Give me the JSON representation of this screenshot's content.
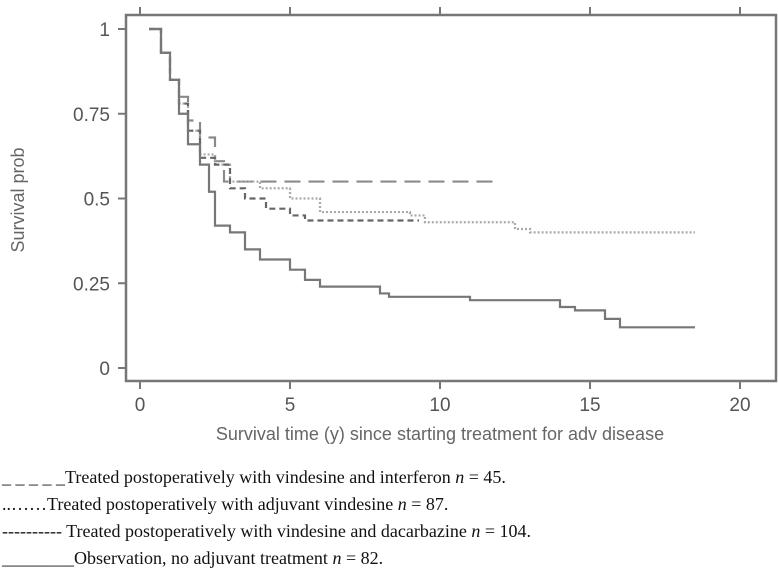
{
  "chart_data": {
    "type": "line",
    "title": "",
    "xlabel": "Survival time (y) since starting treatment for adv disease",
    "ylabel": "Survival prob",
    "xlim": [
      0,
      20
    ],
    "ylim": [
      0,
      1
    ],
    "xticks": [
      "0",
      "5",
      "10",
      "15",
      "20"
    ],
    "yticks": [
      "0",
      "0.25",
      "0.5",
      "0.75",
      "1"
    ],
    "grid": false,
    "step": true,
    "series": [
      {
        "name": "Treated postoperatively with vindesine and interferon",
        "style": "long-dash",
        "color": "#8a8a8a",
        "x": [
          0.3,
          0.7,
          1.0,
          1.3,
          1.6,
          2.0,
          2.5,
          2.8,
          12.0
        ],
        "y": [
          1,
          0.93,
          0.85,
          0.8,
          0.73,
          0.68,
          0.61,
          0.55,
          0.55
        ]
      },
      {
        "name": "Treated postoperatively with adjuvant vindesine",
        "style": "dotted",
        "color": "#a8a8a8",
        "x": [
          0.3,
          0.7,
          1.0,
          1.3,
          1.6,
          2.0,
          2.5,
          3.0,
          4.0,
          5.0,
          6.0,
          9.0,
          9.5,
          11.0,
          12.5,
          13.0,
          18.5
        ],
        "y": [
          1,
          0.93,
          0.85,
          0.78,
          0.7,
          0.63,
          0.6,
          0.55,
          0.53,
          0.5,
          0.46,
          0.45,
          0.43,
          0.43,
          0.41,
          0.4,
          0.4
        ]
      },
      {
        "name": "Treated postoperatively with vindesine and dacarbazine",
        "style": "short-dash",
        "color": "#666666",
        "x": [
          0.3,
          0.7,
          1.0,
          1.3,
          1.6,
          2.0,
          2.5,
          3.0,
          3.5,
          4.2,
          5.0,
          5.5,
          9.3
        ],
        "y": [
          1,
          0.93,
          0.85,
          0.78,
          0.7,
          0.62,
          0.6,
          0.53,
          0.5,
          0.47,
          0.45,
          0.435,
          0.435
        ]
      },
      {
        "name": "Observation, no adjuvant treatment",
        "style": "solid",
        "color": "#777777",
        "x": [
          0.3,
          0.7,
          1.0,
          1.3,
          1.6,
          2.0,
          2.3,
          2.5,
          3.0,
          3.5,
          4.0,
          5.0,
          5.5,
          6.0,
          8.0,
          8.3,
          11.0,
          13.0,
          14.0,
          14.5,
          15.5,
          16.0,
          18.5
        ],
        "y": [
          1,
          0.93,
          0.85,
          0.75,
          0.66,
          0.6,
          0.52,
          0.42,
          0.4,
          0.35,
          0.32,
          0.29,
          0.26,
          0.24,
          0.22,
          0.21,
          0.2,
          0.2,
          0.18,
          0.17,
          0.145,
          0.12,
          0.12
        ]
      }
    ]
  },
  "legend": [
    {
      "marker": "_ _ _ _ _",
      "text": "Treated postoperatively with vindesine and interferon ",
      "n": "n",
      "value": " = 45."
    },
    {
      "marker": "..……",
      "text": "Treated postoperatively with adjuvant vindesine ",
      "n": "n",
      "value": " = 87."
    },
    {
      "marker": "---------- ",
      "text": "Treated postoperatively with vindesine and dacarbazine ",
      "n": "n",
      "value": " = 104."
    },
    {
      "marker": "________",
      "text": "Observation, no adjuvant treatment ",
      "n": "n",
      "value": " = 82."
    }
  ]
}
